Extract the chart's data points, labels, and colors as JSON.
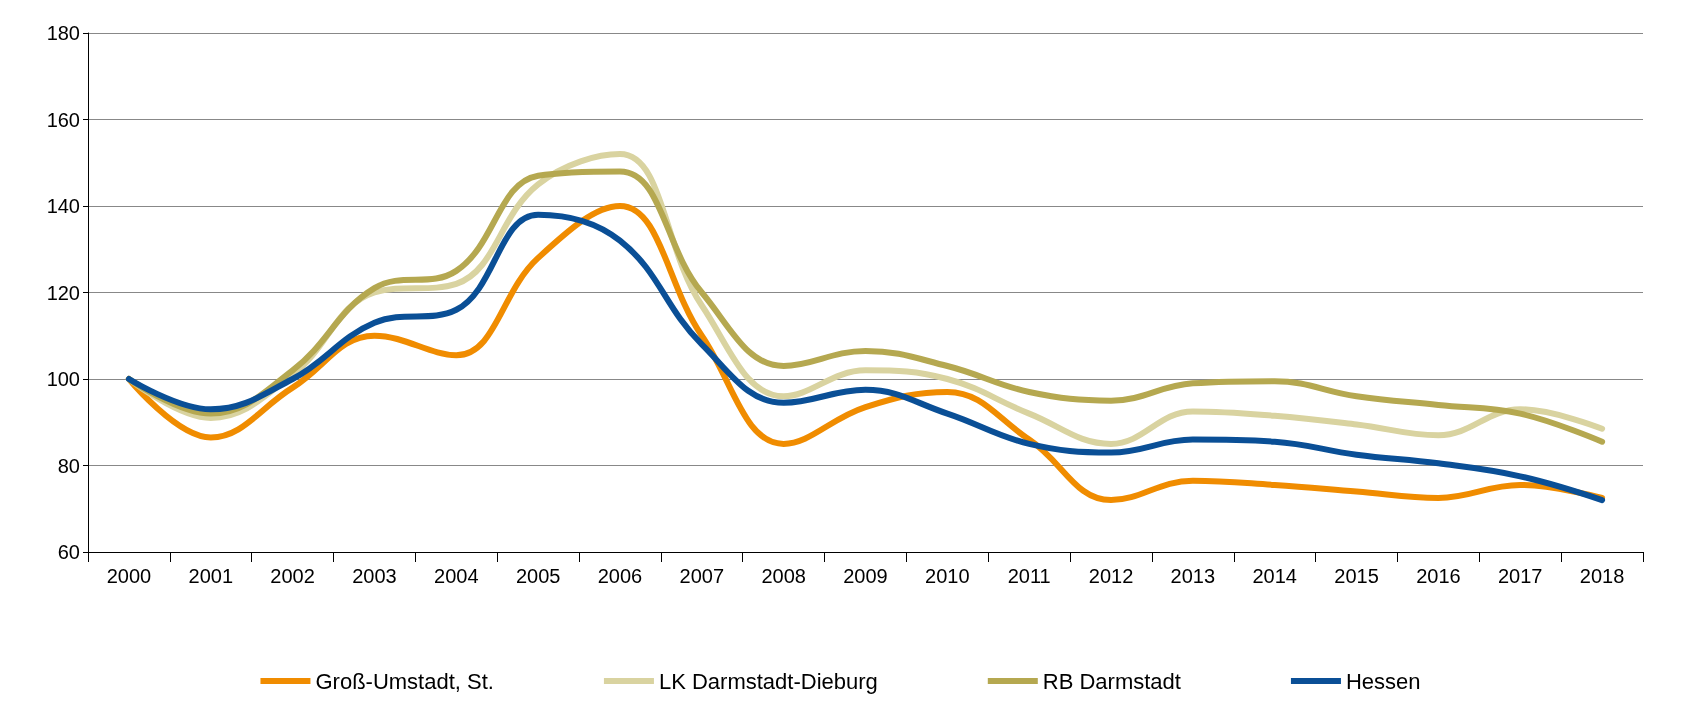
{
  "chart_data": {
    "type": "line",
    "categories": [
      "2000",
      "2001",
      "2002",
      "2003",
      "2004",
      "2005",
      "2006",
      "2007",
      "2008",
      "2009",
      "2010",
      "2011",
      "2012",
      "2013",
      "2014",
      "2015",
      "2016",
      "2017",
      "2018"
    ],
    "series": [
      {
        "name": "Groß-Umstadt, St.",
        "color": "#f08c00",
        "values": [
          100,
          86.5,
          98,
          110,
          105.5,
          128,
          140,
          110,
          85,
          93.5,
          97,
          86,
          72,
          76.5,
          75.5,
          74,
          72.5,
          75.5,
          72.5
        ]
      },
      {
        "name": "LK Darmstadt-Dieburg",
        "color": "#d9d3a0",
        "values": [
          100,
          91,
          101,
          120,
          122,
          145,
          152,
          117,
          96,
          102,
          100,
          92,
          85,
          92.5,
          91.5,
          89.5,
          87,
          93,
          88.5
        ]
      },
      {
        "name": "RB Darmstadt",
        "color": "#b5a850",
        "values": [
          100,
          92,
          102,
          121,
          125,
          147,
          148,
          120,
          103,
          106.5,
          103,
          97,
          95,
          99,
          99.5,
          96,
          94,
          92,
          85.5
        ]
      },
      {
        "name": "Hessen",
        "color": "#0a4f96",
        "values": [
          100,
          93,
          100,
          113,
          116,
          138,
          132,
          108,
          94.5,
          97.5,
          92,
          85,
          83,
          86,
          85.5,
          82.5,
          80.5,
          77.5,
          72
        ]
      }
    ],
    "ylim": [
      60,
      180
    ],
    "yticks": [
      60,
      80,
      100,
      120,
      140,
      160,
      180
    ],
    "grid": "y",
    "legend": "bottom",
    "marker": "none",
    "line_style": "solid"
  }
}
